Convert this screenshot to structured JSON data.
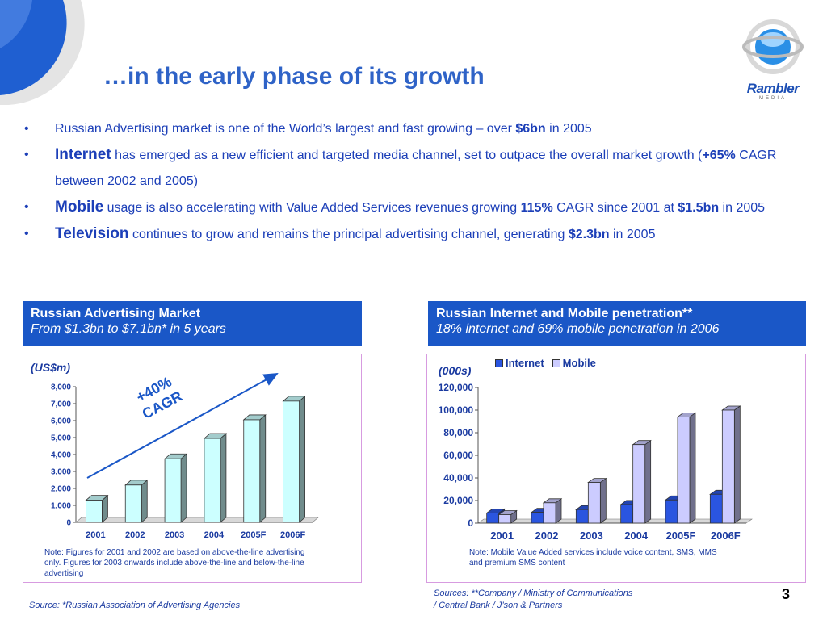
{
  "title": "…in the early phase of its growth",
  "logo": {
    "name": "Rambler",
    "sub": "MEDIA"
  },
  "bullets": [
    {
      "parts": [
        {
          "t": "Russian Advertising market is one of the World’s largest and fast growing – over ",
          "s": "n"
        },
        {
          "t": "$6bn",
          "s": "b"
        },
        {
          "t": " in 2005",
          "s": "n"
        }
      ]
    },
    {
      "parts": [
        {
          "t": "Internet",
          "s": "big"
        },
        {
          "t": " has emerged as a new efficient and targeted media channel, set to outpace the overall market growth (",
          "s": "n"
        },
        {
          "t": "+65%",
          "s": "b"
        },
        {
          "t": " CAGR between 2002 and 2005)",
          "s": "n"
        }
      ]
    },
    {
      "parts": [
        {
          "t": "Mobile",
          "s": "big"
        },
        {
          "t": " usage is also accelerating with Value Added Services revenues growing ",
          "s": "n"
        },
        {
          "t": "115%",
          "s": "b"
        },
        {
          "t": " CAGR since 2001 at ",
          "s": "n"
        },
        {
          "t": "$1.5bn",
          "s": "b"
        },
        {
          "t": " in 2005",
          "s": "n"
        }
      ]
    },
    {
      "parts": [
        {
          "t": "Television",
          "s": "big"
        },
        {
          "t": " continues to grow and remains the principal advertising channel, generating ",
          "s": "n"
        },
        {
          "t": "$2.3bn",
          "s": "b"
        },
        {
          "t": " in 2005",
          "s": "n"
        }
      ]
    }
  ],
  "left_box": {
    "heading": "Russian Advertising Market",
    "subheading": "From $1.3bn to $7.1bn* in 5 years",
    "unit": "(US$m)",
    "annotation_line1": "+40%",
    "annotation_line2": "CAGR",
    "note": "Note: Figures for 2001 and 2002 are based on above-the-line advertising only. Figures for 2003 onwards include above-the-line and below-the-line advertising",
    "source": "Source: *Russian Association of Advertising Agencies"
  },
  "right_box": {
    "heading": "Russian Internet and Mobile penetration**",
    "subheading": "18% internet and 69% mobile penetration in 2006",
    "unit": "(000s)",
    "note": "Note: Mobile Value Added services include voice content, SMS, MMS and premium SMS content",
    "source_line1": "Sources: **Company / Ministry of Communications",
    "source_line2": "/ Central Bank / J’son & Partners"
  },
  "page_number": "3",
  "colors": {
    "accent": "#1a57c7",
    "title": "#2f63c7",
    "text": "#1c3fb8",
    "bar_cyan": "#ccffff",
    "bar_blue": "#2a55e0",
    "bar_lavender": "#ccccff",
    "panel_border": "#d79be0"
  },
  "chart_data": [
    {
      "type": "bar",
      "categories": [
        "2001",
        "2002",
        "2003",
        "2004",
        "2005F",
        "2006F"
      ],
      "values": [
        1300,
        2200,
        3750,
        4950,
        6050,
        7150
      ],
      "ylim": [
        0,
        8000
      ],
      "yticks": [
        "0",
        "1,000",
        "2,000",
        "3,000",
        "4,000",
        "5,000",
        "6,000",
        "7,000",
        "8,000"
      ],
      "grid": false,
      "bar_color": "#ccffff"
    },
    {
      "type": "bar",
      "categories": [
        "2001",
        "2002",
        "2003",
        "2004",
        "2005F",
        "2006F"
      ],
      "series": [
        {
          "name": "Internet",
          "values": [
            9000,
            9500,
            12000,
            16500,
            20500,
            25500
          ],
          "color": "#2a55e0"
        },
        {
          "name": "Mobile",
          "values": [
            7500,
            18000,
            36000,
            69500,
            94000,
            100000
          ],
          "color": "#ccccff"
        }
      ],
      "ylim": [
        0,
        120000
      ],
      "yticks": [
        "0",
        "20,000",
        "40,000",
        "60,000",
        "80,000",
        "100,000",
        "120,000"
      ],
      "grid": false,
      "legend": "top"
    }
  ]
}
